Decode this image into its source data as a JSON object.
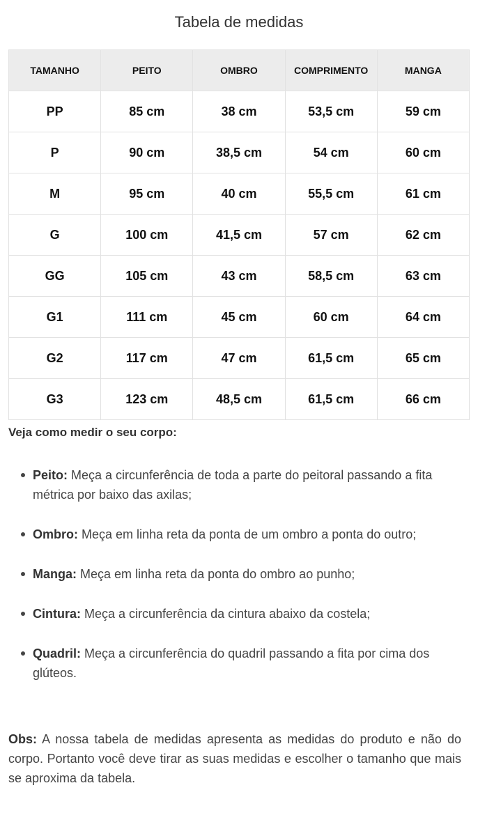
{
  "title": "Tabela de medidas",
  "table": {
    "headers": [
      "TAMANHO",
      "PEITO",
      "OMBRO",
      "COMPRIMENTO",
      "MANGA"
    ],
    "rows": [
      [
        "PP",
        "85 cm",
        "38 cm",
        "53,5 cm",
        "59 cm"
      ],
      [
        "P",
        "90 cm",
        "38,5 cm",
        "54 cm",
        "60 cm"
      ],
      [
        "M",
        "95 cm",
        "40 cm",
        "55,5 cm",
        "61 cm"
      ],
      [
        "G",
        "100 cm",
        "41,5 cm",
        "57 cm",
        "62 cm"
      ],
      [
        "GG",
        "105 cm",
        "43 cm",
        "58,5 cm",
        "63 cm"
      ],
      [
        "G1",
        "111 cm",
        "45 cm",
        "60 cm",
        "64 cm"
      ],
      [
        "G2",
        "117 cm",
        "47 cm",
        "61,5 cm",
        "65 cm"
      ],
      [
        "G3",
        "123 cm",
        "48,5 cm",
        "61,5 cm",
        "66 cm"
      ]
    ]
  },
  "guide": {
    "heading": "Veja como medir o seu corpo:",
    "items": [
      {
        "label": "Peito:",
        "text": " Meça a circunferência de toda a parte do peitoral passando a fita métrica por baixo das axilas;"
      },
      {
        "label": "Ombro:",
        "text": " Meça em linha reta da ponta de um ombro a ponta do outro;"
      },
      {
        "label": "Manga:",
        "text": " Meça em linha reta da ponta do ombro ao punho;"
      },
      {
        "label": "Cintura:",
        "text": " Meça a circunferência da cintura abaixo da costela;"
      },
      {
        "label": "Quadril:",
        "text": " Meça a circunferência do quadril passando a fita por cima dos glúteos."
      }
    ]
  },
  "obs": {
    "label": "Obs:",
    "text": " A nossa tabela de medidas apresenta as medidas do produto e não do corpo. Portanto você deve tirar as suas medidas e escolher o tamanho que mais se aproxima da tabela."
  }
}
